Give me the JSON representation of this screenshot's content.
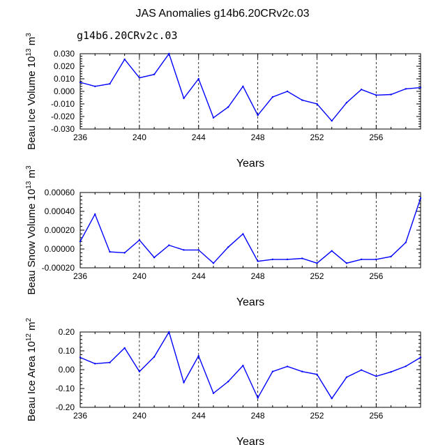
{
  "title": "JAS Anomalies g14b6.20CRv2c.03",
  "subtitle": "g14b6.20CRv2c.03",
  "colors": {
    "line": "#0000ff",
    "subtitle": "#4a5bd6",
    "axis": "#000000"
  },
  "chart_data": [
    {
      "type": "line",
      "ylabel": "Beau Ice Volume 10",
      "ylabel_exp": "13",
      "ylabel_unit": " m",
      "ylabel_unit_exp": "3",
      "xlabel": "Years",
      "xlim": [
        236,
        259
      ],
      "ylim": [
        -0.03,
        0.03
      ],
      "xticks": [
        236,
        240,
        244,
        248,
        252,
        256
      ],
      "yticks": [
        -0.03,
        -0.02,
        -0.01,
        0.0,
        0.01,
        0.02,
        0.03
      ],
      "ytick_labels": [
        "-0.030",
        "-0.020",
        "-0.010",
        "0.000",
        "0.010",
        "0.020",
        "0.030"
      ],
      "ytick_minor_step": 0.002,
      "vlines": [
        240,
        244,
        248,
        252,
        256
      ],
      "x": [
        236,
        237,
        238,
        239,
        240,
        241,
        242,
        243,
        244,
        245,
        246,
        247,
        248,
        249,
        250,
        251,
        252,
        253,
        254,
        255,
        256,
        257,
        258,
        259
      ],
      "y": [
        0.0072,
        0.004,
        0.006,
        0.0255,
        0.0108,
        0.0135,
        0.03,
        -0.0055,
        0.01,
        -0.021,
        -0.0125,
        0.004,
        -0.019,
        -0.0045,
        0.0,
        -0.007,
        -0.01,
        -0.0235,
        -0.009,
        0.0015,
        -0.003,
        -0.0025,
        0.002,
        0.003
      ]
    },
    {
      "type": "line",
      "ylabel": "Beau Snow Volume 10",
      "ylabel_exp": "13",
      "ylabel_unit": " m",
      "ylabel_unit_exp": "3",
      "xlabel": "Years",
      "xlim": [
        236,
        259
      ],
      "ylim": [
        -0.0002,
        0.0006
      ],
      "xticks": [
        236,
        240,
        244,
        248,
        252,
        256
      ],
      "yticks": [
        -0.0002,
        0.0,
        0.0002,
        0.0004,
        0.0006
      ],
      "ytick_labels": [
        "-0.00020",
        "0.00000",
        "0.00020",
        "0.00040",
        "0.00060"
      ],
      "ytick_minor_step": 4e-05,
      "vlines": [
        240,
        244,
        248,
        252,
        256
      ],
      "x": [
        236,
        237,
        238,
        239,
        240,
        241,
        242,
        243,
        244,
        245,
        246,
        247,
        248,
        249,
        250,
        251,
        252,
        253,
        254,
        255,
        256,
        257,
        258,
        259
      ],
      "y": [
        8e-05,
        0.00037,
        -3e-05,
        -4e-05,
        9.5e-05,
        -9e-05,
        4e-05,
        -1e-05,
        -1e-05,
        -0.00015,
        2e-05,
        0.00016,
        -0.00013,
        -0.00011,
        -0.00011,
        -0.0001,
        -0.00015,
        -2e-05,
        -0.00015,
        -0.00011,
        -0.00011,
        -8e-05,
        7e-05,
        0.00054
      ]
    },
    {
      "type": "line",
      "ylabel": "Beau Ice Area 10",
      "ylabel_exp": "12",
      "ylabel_unit": " m",
      "ylabel_unit_exp": "2",
      "xlabel": "Years",
      "xlim": [
        236,
        259
      ],
      "ylim": [
        -0.2,
        0.2
      ],
      "xticks": [
        236,
        240,
        244,
        248,
        252,
        256
      ],
      "yticks": [
        -0.2,
        -0.1,
        0.0,
        0.1,
        0.2
      ],
      "ytick_labels": [
        "-0.20",
        "-0.10",
        "0.00",
        "0.10",
        "0.20"
      ],
      "ytick_minor_step": 0.02,
      "vlines": [
        240,
        244,
        248,
        252,
        256
      ],
      "x": [
        236,
        237,
        238,
        239,
        240,
        241,
        242,
        243,
        244,
        245,
        246,
        247,
        248,
        249,
        250,
        251,
        252,
        253,
        254,
        255,
        256,
        257,
        258,
        259
      ],
      "y": [
        0.065,
        0.032,
        0.038,
        0.115,
        -0.01,
        0.068,
        0.2,
        -0.068,
        0.073,
        -0.125,
        -0.063,
        0.022,
        -0.15,
        -0.01,
        0.017,
        -0.01,
        -0.025,
        -0.153,
        -0.04,
        -0.002,
        -0.035,
        -0.012,
        0.018,
        0.065
      ]
    }
  ]
}
